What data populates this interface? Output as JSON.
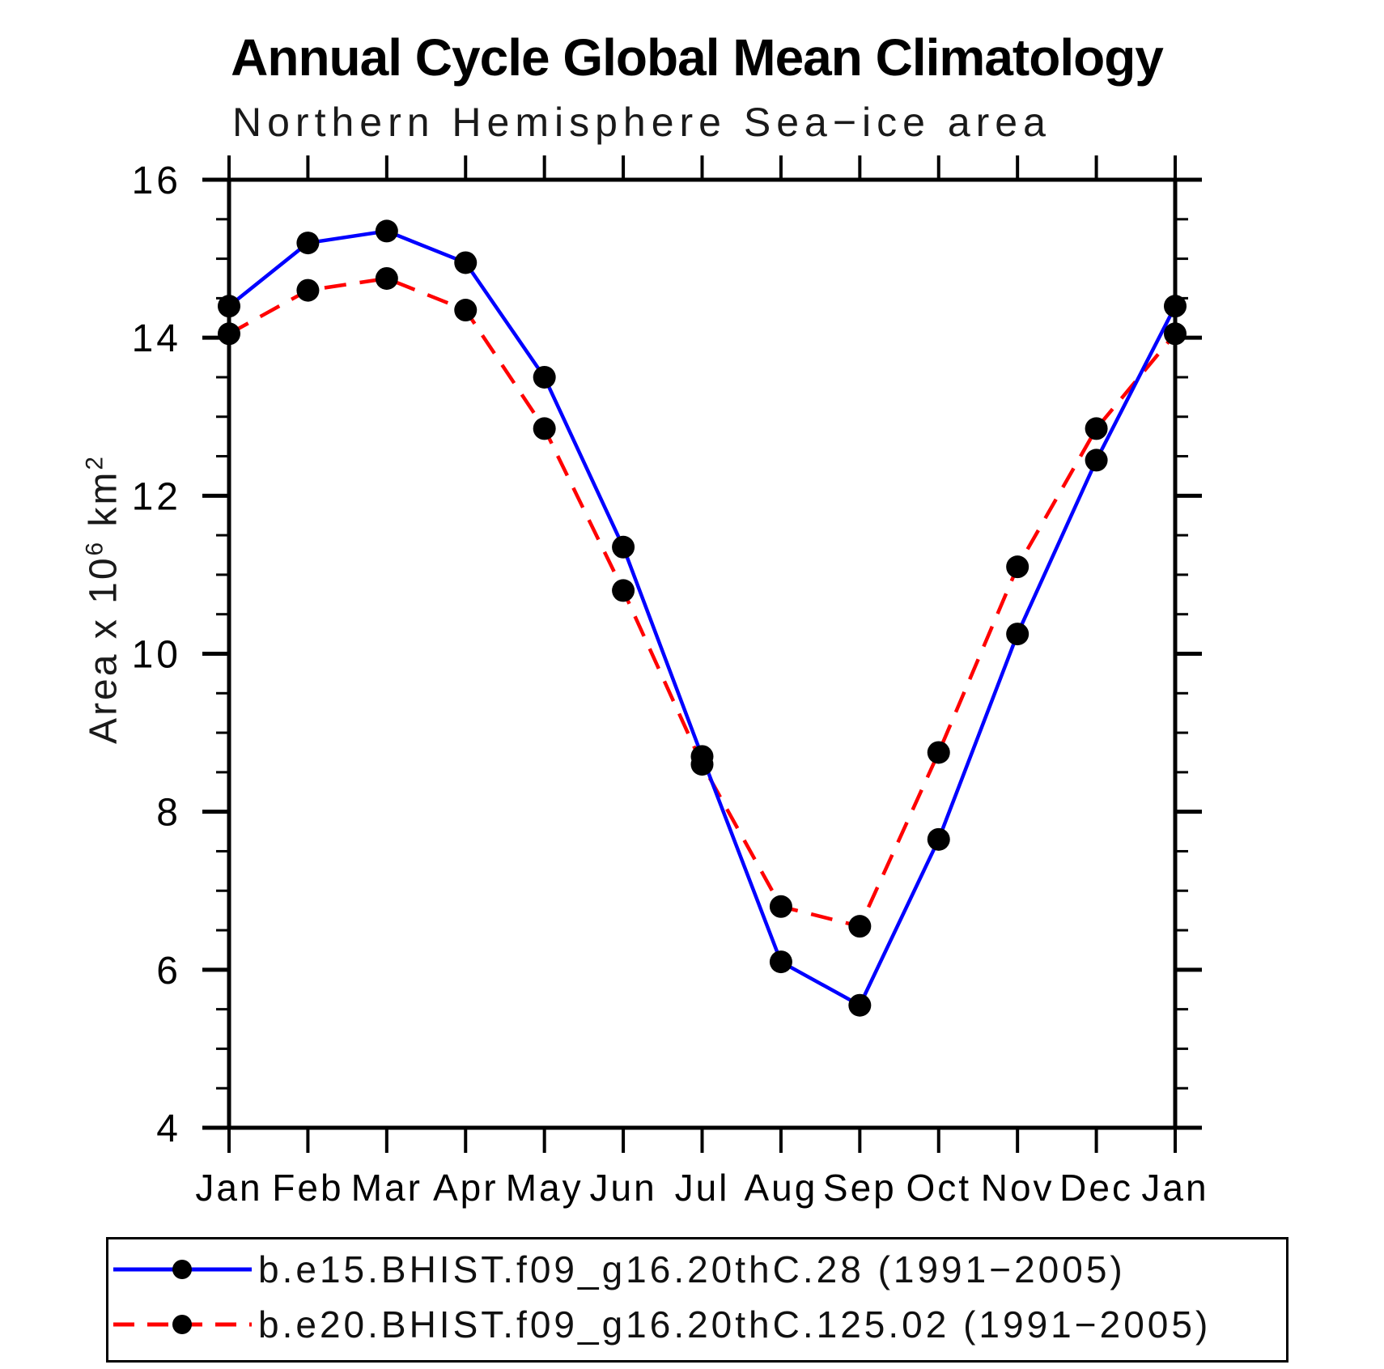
{
  "chart_data": {
    "type": "line",
    "title": "Annual Cycle Global Mean Climatology",
    "subtitle": "Northern Hemisphere Sea−ice area",
    "categories": [
      "Jan",
      "Feb",
      "Mar",
      "Apr",
      "May",
      "Jun",
      "Jul",
      "Aug",
      "Sep",
      "Oct",
      "Nov",
      "Dec",
      "Jan"
    ],
    "series": [
      {
        "name": "b.e15.BHIST.f09_g16.20thC.28 (1991−2005)",
        "color": "#0000ff",
        "line_style": "solid",
        "marker": "filled-circle",
        "marker_color": "#000000",
        "values": [
          14.4,
          15.2,
          15.35,
          14.95,
          13.5,
          11.35,
          8.7,
          6.1,
          5.55,
          7.65,
          10.25,
          12.45,
          14.4
        ]
      },
      {
        "name": "b.e20.BHIST.f09_g16.20thC.125.02 (1991−2005)",
        "color": "#ff0000",
        "line_style": "dashed",
        "marker": "filled-circle",
        "marker_color": "#000000",
        "values": [
          14.05,
          14.6,
          14.75,
          14.35,
          12.85,
          10.8,
          8.6,
          6.8,
          6.55,
          8.75,
          11.1,
          12.85,
          14.05
        ]
      }
    ],
    "xlabel": "",
    "ylabel": "Area x 10^6 km^2",
    "ylabel_parts": {
      "base1": "Area x 10",
      "sup1": "6",
      "base2": " km",
      "sup2": "2"
    },
    "ylim": [
      4,
      16
    ],
    "y_major_step": 2,
    "y_minor_step": 0.5,
    "x_tick_labels": [
      "Jan",
      "Feb",
      "Mar",
      "Apr",
      "May",
      "Jun",
      "Jul",
      "Aug",
      "Sep",
      "Oct",
      "Nov",
      "Dec",
      "Jan"
    ],
    "y_tick_labels": [
      "16",
      "14",
      "12",
      "10",
      "8",
      "6",
      "4"
    ],
    "grid": false,
    "legend_position": "bottom-left-box"
  }
}
